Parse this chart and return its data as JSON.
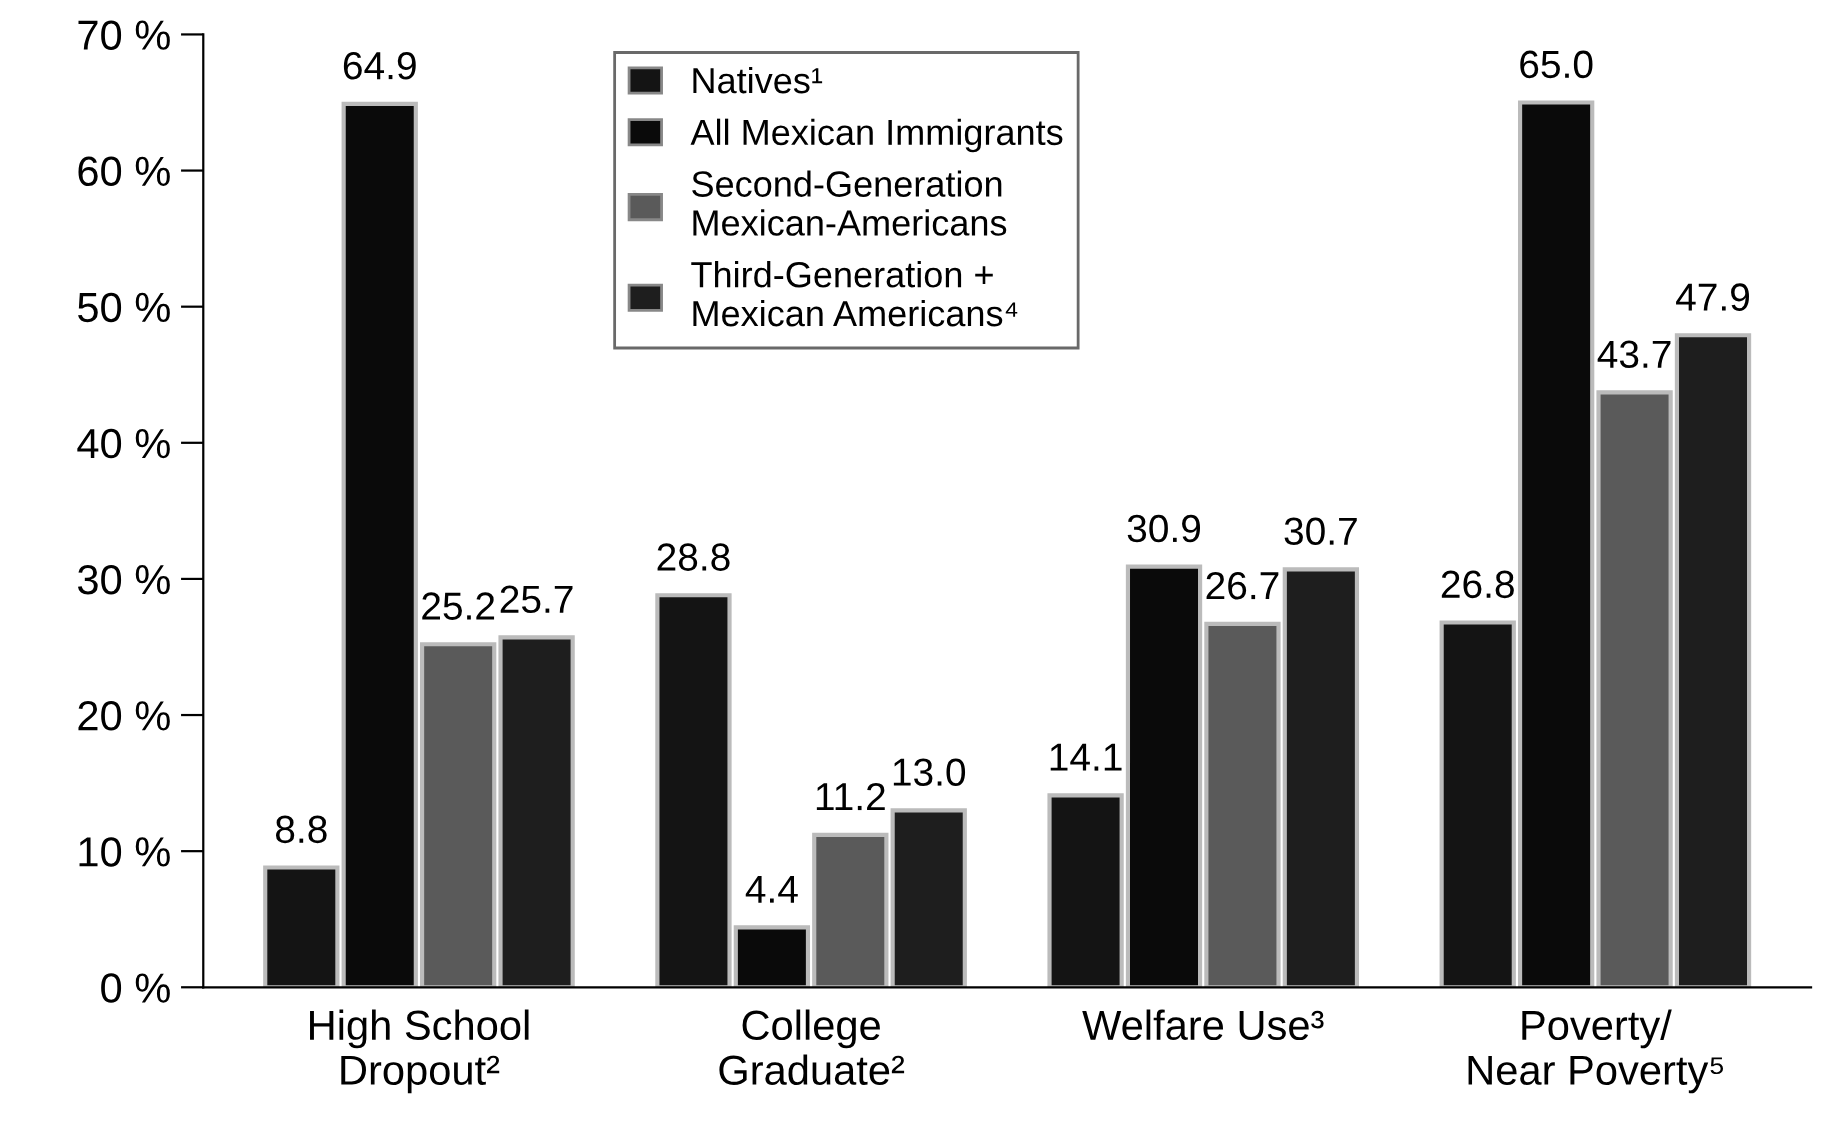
{
  "chart_data": {
    "type": "bar",
    "categories": [
      "High School\nDropout²",
      "College\nGraduate²",
      "Welfare Use³",
      "Poverty/\nNear Poverty⁵"
    ],
    "series": [
      {
        "name": "Natives¹",
        "color": "#141414",
        "values": [
          8.8,
          28.8,
          14.1,
          26.8
        ],
        "value_labels": [
          "8.8",
          "28.8",
          "14.1",
          "26.8"
        ]
      },
      {
        "name": "All Mexican Immigrants",
        "color": "#0a0a0a",
        "values": [
          64.9,
          4.4,
          30.9,
          65.0
        ],
        "value_labels": [
          "64.9",
          "4.4",
          "30.9",
          "65.0"
        ]
      },
      {
        "name": "Second-Generation\nMexican-Americans",
        "color": "#5a5a5a",
        "values": [
          25.2,
          11.2,
          26.7,
          43.7
        ],
        "value_labels": [
          "25.2",
          "11.2",
          "26.7",
          "43.7"
        ]
      },
      {
        "name": "Third-Generation +\nMexican Americans⁴",
        "color": "#1e1e1e",
        "values": [
          25.7,
          13.0,
          30.7,
          47.9
        ],
        "value_labels": [
          "25.7",
          "13.0",
          "30.7",
          "47.9"
        ]
      }
    ],
    "ylim": [
      0,
      70
    ],
    "yticks": [
      {
        "value": 0,
        "label": "0 %"
      },
      {
        "value": 10,
        "label": "10 %"
      },
      {
        "value": 20,
        "label": "20 %"
      },
      {
        "value": 30,
        "label": "30 %"
      },
      {
        "value": 40,
        "label": "40 %"
      },
      {
        "value": 50,
        "label": "50 %"
      },
      {
        "value": 60,
        "label": "60 %"
      },
      {
        "value": 70,
        "label": "70 %"
      }
    ],
    "grid": false,
    "legend": "top"
  }
}
